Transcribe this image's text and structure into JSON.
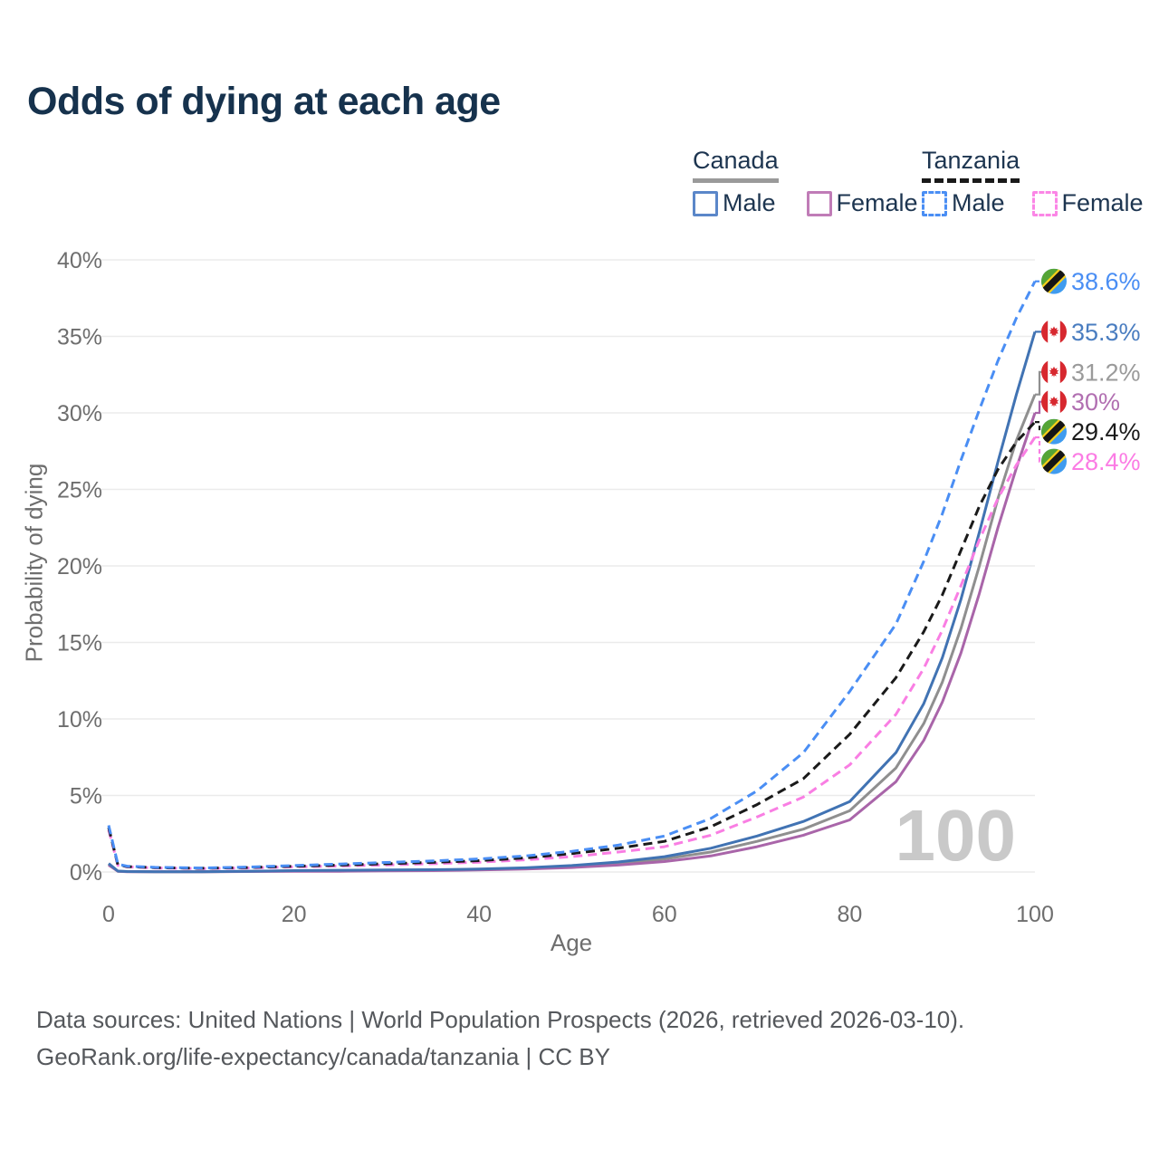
{
  "title": "Odds of dying at each age",
  "legend": {
    "groups": [
      {
        "label": "Canada",
        "underline_style": "solid",
        "underline_color": "#9a9a9a",
        "items": [
          {
            "label": "Male",
            "swatch_color": "#5b87c9",
            "swatch_style": "solid"
          },
          {
            "label": "Female",
            "swatch_color": "#c07cb7",
            "swatch_style": "solid"
          }
        ]
      },
      {
        "label": "Tanzania",
        "underline_style": "dashed",
        "underline_color": "#1a1a1a",
        "items": [
          {
            "label": "Male",
            "swatch_color": "#4a8ef4",
            "swatch_style": "dashed"
          },
          {
            "label": "Female",
            "swatch_color": "#fb86e6",
            "swatch_style": "dashed"
          }
        ]
      }
    ]
  },
  "watermark": "100",
  "footer": {
    "line1": "Data sources: United Nations | World Population Prospects (2026, retrieved 2026-03-10).",
    "line2": "GeoRank.org/life-expectancy/canada/tanzania | CC BY"
  },
  "chart_data": {
    "type": "line",
    "title": "Odds of dying at each age",
    "xlabel": "Age",
    "ylabel": "Probability of dying",
    "xlim": [
      0,
      100
    ],
    "ylim": [
      0,
      40
    ],
    "x_ticks": [
      0,
      20,
      40,
      60,
      80,
      100
    ],
    "y_ticks": [
      0,
      5,
      10,
      15,
      20,
      25,
      30,
      35,
      40
    ],
    "y_tick_suffix": "%",
    "grid": true,
    "legend_position": "top-right",
    "age_indicator": "100",
    "ages": [
      0,
      1,
      2,
      5,
      10,
      15,
      20,
      25,
      30,
      35,
      40,
      45,
      50,
      55,
      60,
      65,
      70,
      75,
      80,
      85,
      88,
      90,
      92,
      94,
      96,
      98,
      100
    ],
    "series": [
      {
        "name": "Canada",
        "country": "Canada",
        "sex": "Both",
        "flag": "canada",
        "style": "solid",
        "color": "#8f8f8f",
        "label_color": "#9a9a9a",
        "end_label": "31.2%",
        "end_value": 31.2,
        "values": [
          0.5,
          0.05,
          0.03,
          0.02,
          0.02,
          0.04,
          0.07,
          0.09,
          0.11,
          0.13,
          0.17,
          0.24,
          0.37,
          0.56,
          0.85,
          1.3,
          2.0,
          2.8,
          4.0,
          6.8,
          9.7,
          12.4,
          15.9,
          20.0,
          24.4,
          28.2,
          31.2
        ]
      },
      {
        "name": "Canada Female",
        "country": "Canada",
        "sex": "Female",
        "flag": "canada",
        "style": "solid",
        "color": "#a965a9",
        "label_color": "#b16fb1",
        "end_label": "30%",
        "end_value": 30.0,
        "values": [
          0.45,
          0.05,
          0.02,
          0.02,
          0.02,
          0.03,
          0.04,
          0.05,
          0.07,
          0.09,
          0.13,
          0.19,
          0.29,
          0.45,
          0.68,
          1.05,
          1.65,
          2.4,
          3.4,
          5.9,
          8.6,
          11.1,
          14.3,
          18.2,
          22.5,
          26.4,
          30.0
        ]
      },
      {
        "name": "Canada Male",
        "country": "Canada",
        "sex": "Male",
        "flag": "canada",
        "style": "solid",
        "color": "#4173b3",
        "label_color": "#4a7dc0",
        "end_label": "35.3%",
        "end_value": 35.3,
        "values": [
          0.55,
          0.06,
          0.03,
          0.02,
          0.02,
          0.05,
          0.09,
          0.11,
          0.13,
          0.15,
          0.19,
          0.27,
          0.42,
          0.65,
          1.0,
          1.55,
          2.35,
          3.3,
          4.6,
          7.8,
          11.0,
          14.0,
          17.8,
          22.2,
          26.8,
          31.2,
          35.3
        ]
      },
      {
        "name": "Tanzania Female",
        "country": "Tanzania",
        "sex": "Female",
        "flag": "tanzania",
        "style": "dashed",
        "color": "#f97ee3",
        "label_color": "#fb7ce4",
        "end_label": "28.4%",
        "end_value": 28.4,
        "values": [
          2.75,
          0.43,
          0.33,
          0.26,
          0.22,
          0.26,
          0.33,
          0.39,
          0.46,
          0.54,
          0.64,
          0.79,
          1.0,
          1.3,
          1.65,
          2.4,
          3.6,
          4.9,
          7.0,
          10.3,
          13.3,
          15.8,
          18.7,
          21.7,
          24.4,
          26.6,
          28.4
        ]
      },
      {
        "name": "Tanzania",
        "country": "Tanzania",
        "sex": "Both",
        "flag": "tanzania",
        "style": "dashed",
        "color": "#1a1a1a",
        "label_color": "#1a1a1a",
        "end_label": "29.4%",
        "end_value": 29.4,
        "values": [
          2.9,
          0.46,
          0.35,
          0.28,
          0.24,
          0.29,
          0.37,
          0.45,
          0.54,
          0.63,
          0.74,
          0.92,
          1.2,
          1.55,
          2.0,
          2.95,
          4.4,
          6.1,
          9.0,
          12.7,
          15.7,
          18.1,
          21.0,
          23.9,
          26.3,
          28.1,
          29.4
        ]
      },
      {
        "name": "Tanzania Male",
        "country": "Tanzania",
        "sex": "Male",
        "flag": "tanzania",
        "style": "dashed",
        "color": "#4a8ef4",
        "label_color": "#4a8ef4",
        "end_label": "38.6%",
        "end_value": 38.6,
        "values": [
          3.05,
          0.5,
          0.38,
          0.3,
          0.26,
          0.32,
          0.42,
          0.52,
          0.62,
          0.72,
          0.85,
          1.05,
          1.35,
          1.75,
          2.35,
          3.5,
          5.3,
          7.8,
          11.8,
          16.2,
          20.3,
          23.4,
          26.9,
          30.2,
          33.4,
          36.2,
          38.6
        ]
      }
    ]
  }
}
